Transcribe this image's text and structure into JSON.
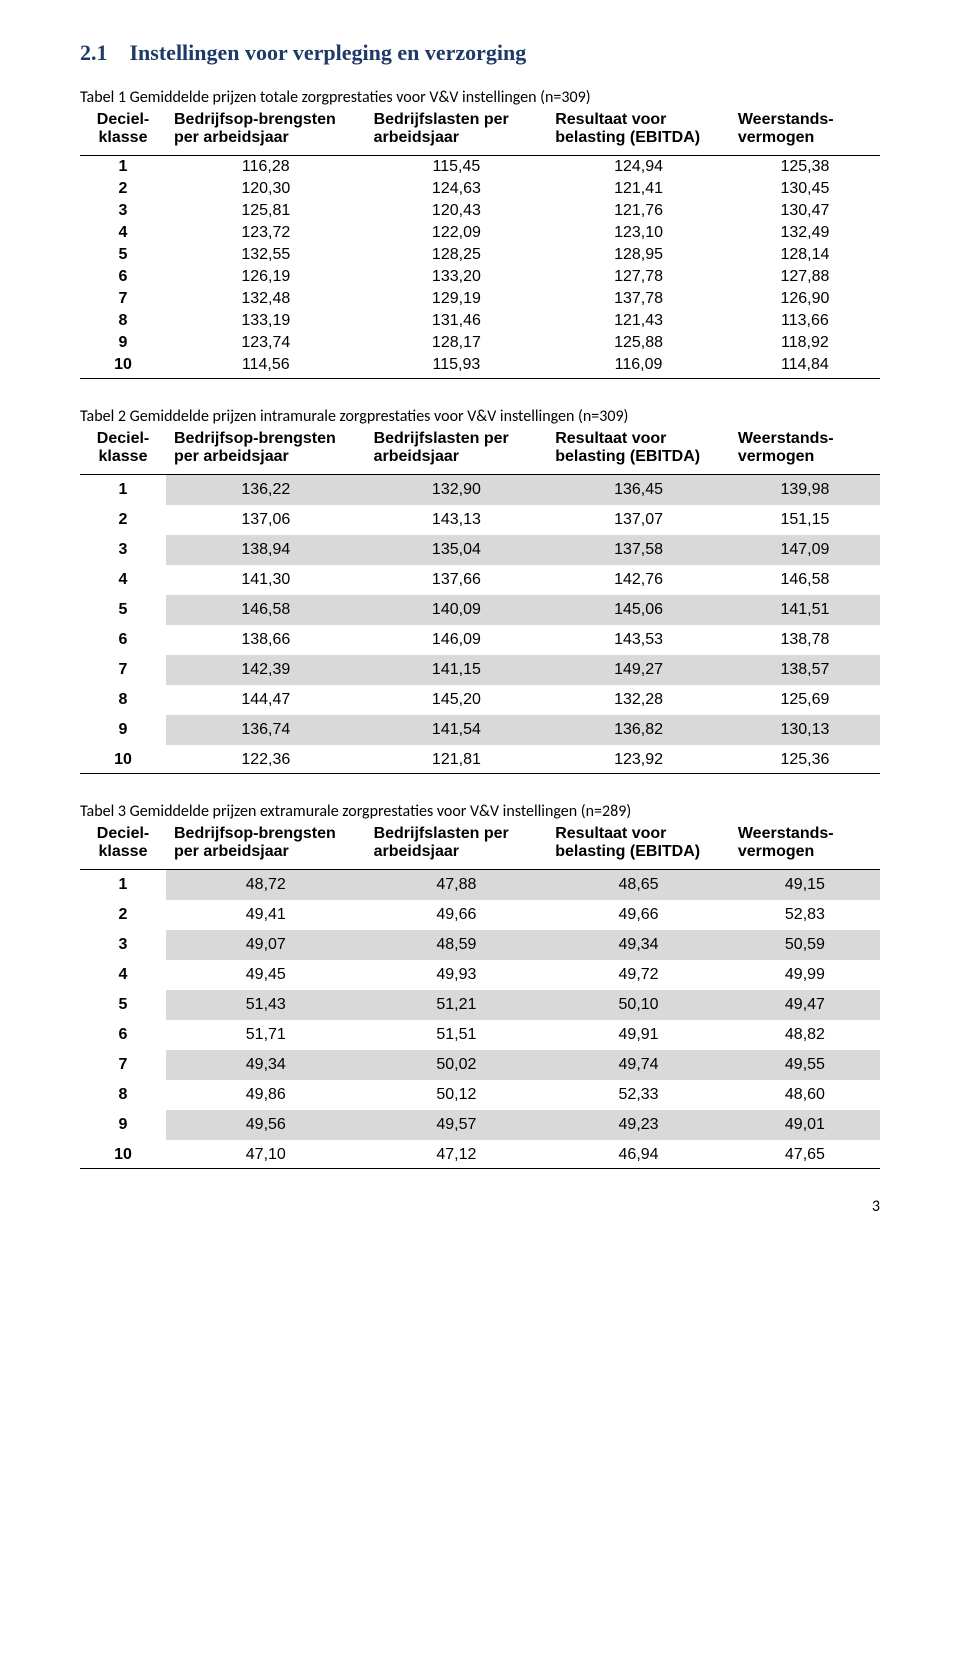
{
  "section_title": "2.1 Instellingen voor verpleging en verzorging",
  "columns": {
    "c1": "Deciel-klasse",
    "c2": "Bedrijfsop-brengsten per arbeidsjaar",
    "c3": "Bedrijfslasten per arbeidsjaar",
    "c4": "Resultaat voor belasting (EBITDA)",
    "c5": "Weerstands-vermogen"
  },
  "table1": {
    "caption": "Tabel 1 Gemiddelde prijzen totale zorgprestaties voor V&V instellingen (n=309)",
    "rows": [
      [
        "1",
        "116,28",
        "115,45",
        "124,94",
        "125,38"
      ],
      [
        "2",
        "120,30",
        "124,63",
        "121,41",
        "130,45"
      ],
      [
        "3",
        "125,81",
        "120,43",
        "121,76",
        "130,47"
      ],
      [
        "4",
        "123,72",
        "122,09",
        "123,10",
        "132,49"
      ],
      [
        "5",
        "132,55",
        "128,25",
        "128,95",
        "128,14"
      ],
      [
        "6",
        "126,19",
        "133,20",
        "127,78",
        "127,88"
      ],
      [
        "7",
        "132,48",
        "129,19",
        "137,78",
        "126,90"
      ],
      [
        "8",
        "133,19",
        "131,46",
        "121,43",
        "113,66"
      ],
      [
        "9",
        "123,74",
        "128,17",
        "125,88",
        "118,92"
      ],
      [
        "10",
        "114,56",
        "115,93",
        "116,09",
        "114,84"
      ]
    ]
  },
  "table2": {
    "caption": "Tabel 2 Gemiddelde prijzen intramurale zorgprestaties voor V&V instellingen (n=309)",
    "rows": [
      [
        "1",
        "136,22",
        "132,90",
        "136,45",
        "139,98"
      ],
      [
        "2",
        "137,06",
        "143,13",
        "137,07",
        "151,15"
      ],
      [
        "3",
        "138,94",
        "135,04",
        "137,58",
        "147,09"
      ],
      [
        "4",
        "141,30",
        "137,66",
        "142,76",
        "146,58"
      ],
      [
        "5",
        "146,58",
        "140,09",
        "145,06",
        "141,51"
      ],
      [
        "6",
        "138,66",
        "146,09",
        "143,53",
        "138,78"
      ],
      [
        "7",
        "142,39",
        "141,15",
        "149,27",
        "138,57"
      ],
      [
        "8",
        "144,47",
        "145,20",
        "132,28",
        "125,69"
      ],
      [
        "9",
        "136,74",
        "141,54",
        "136,82",
        "130,13"
      ],
      [
        "10",
        "122,36",
        "121,81",
        "123,92",
        "125,36"
      ]
    ]
  },
  "table3": {
    "caption": "Tabel 3 Gemiddelde prijzen extramurale zorgprestaties voor V&V instellingen (n=289)",
    "rows": [
      [
        "1",
        "48,72",
        "47,88",
        "48,65",
        "49,15"
      ],
      [
        "2",
        "49,41",
        "49,66",
        "49,66",
        "52,83"
      ],
      [
        "3",
        "49,07",
        "48,59",
        "49,34",
        "50,59"
      ],
      [
        "4",
        "49,45",
        "49,93",
        "49,72",
        "49,99"
      ],
      [
        "5",
        "51,43",
        "51,21",
        "50,10",
        "49,47"
      ],
      [
        "6",
        "51,71",
        "51,51",
        "49,91",
        "48,82"
      ],
      [
        "7",
        "49,34",
        "50,02",
        "49,74",
        "49,55"
      ],
      [
        "8",
        "49,86",
        "50,12",
        "52,33",
        "48,60"
      ],
      [
        "9",
        "49,56",
        "49,57",
        "49,23",
        "49,01"
      ],
      [
        "10",
        "47,10",
        "47,12",
        "46,94",
        "47,65"
      ]
    ]
  },
  "page_number": "3",
  "colors": {
    "heading": "#1f3a67",
    "zebra": "#d9d9d9",
    "text": "#000000",
    "background": "#ffffff"
  }
}
